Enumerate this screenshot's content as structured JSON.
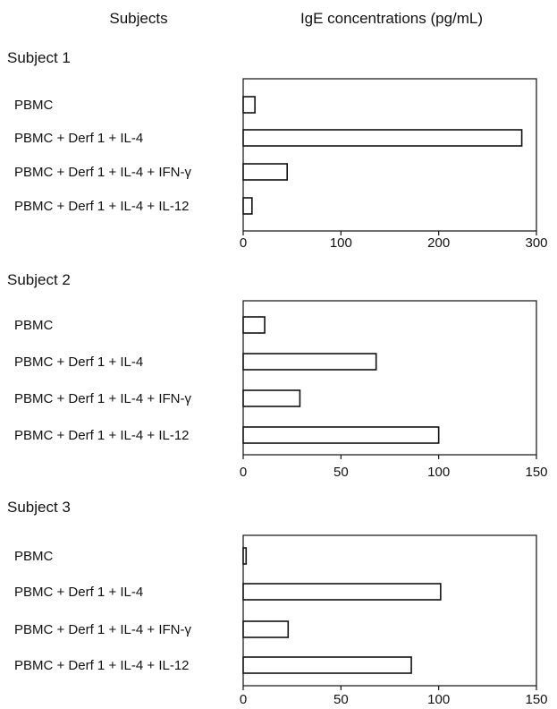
{
  "header": {
    "subjects_label": "Subjects",
    "value_label": "IgE concentrations (pg/mL)"
  },
  "colors": {
    "bar_fill": "#ffffff",
    "bar_stroke": "#111111",
    "axis": "#111111"
  },
  "chart_data": [
    {
      "type": "bar",
      "orientation": "horizontal",
      "title": "Subject 1",
      "categories": [
        "PBMC",
        "PBMC + Derf 1 + IL-4",
        "PBMC + Derf 1 + IL-4 + IFN-γ",
        "PBMC + Derf 1 + IL-4 + IL-12"
      ],
      "values": [
        12,
        285,
        45,
        9
      ],
      "xlim": [
        0,
        300
      ],
      "xticks": [
        0,
        100,
        200,
        300
      ],
      "xlabel": "",
      "ylabel": "",
      "grid": false
    },
    {
      "type": "bar",
      "orientation": "horizontal",
      "title": "Subject 2",
      "categories": [
        "PBMC",
        "PBMC + Derf 1 + IL-4",
        "PBMC + Derf 1 + IL-4 + IFN-γ",
        "PBMC + Derf 1 + IL-4 + IL-12"
      ],
      "values": [
        11,
        68,
        29,
        100
      ],
      "xlim": [
        0,
        150
      ],
      "xticks": [
        0,
        50,
        100,
        150
      ],
      "xlabel": "",
      "ylabel": "",
      "grid": false
    },
    {
      "type": "bar",
      "orientation": "horizontal",
      "title": "Subject 3",
      "categories": [
        "PBMC",
        "PBMC + Derf 1 + IL-4",
        "PBMC + Derf 1 + IL-4 + IFN-γ",
        "PBMC + Derf 1 + IL-4 + IL-12"
      ],
      "values": [
        1.5,
        101,
        23,
        86
      ],
      "xlim": [
        0,
        150
      ],
      "xticks": [
        0,
        50,
        100,
        150
      ],
      "xlabel": "",
      "ylabel": "",
      "grid": false
    }
  ]
}
